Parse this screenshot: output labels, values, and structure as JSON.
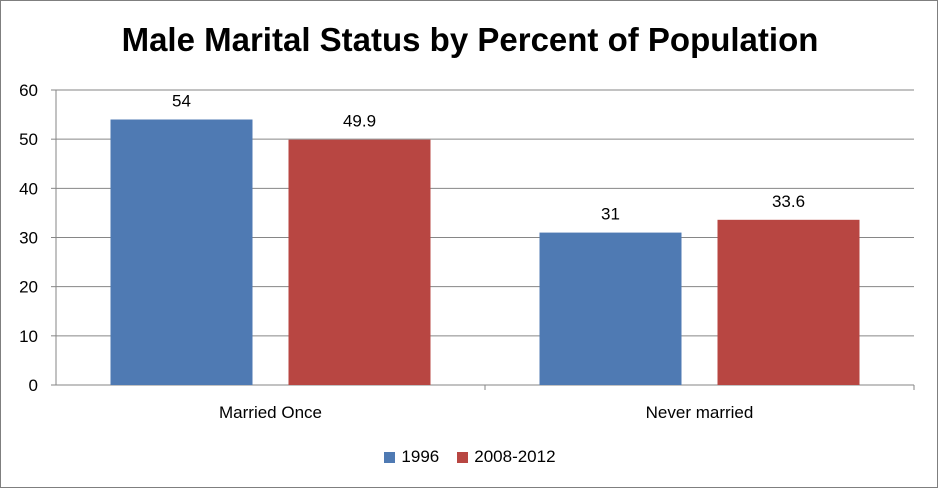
{
  "chart_data": {
    "type": "bar",
    "title": "Male Marital Status by Percent of Population",
    "categories": [
      "Married Once",
      "Never married"
    ],
    "series": [
      {
        "name": "1996",
        "values": [
          54,
          31
        ],
        "labels": [
          "54",
          "31"
        ],
        "color": "#4f7ab3"
      },
      {
        "name": "2008-2012",
        "values": [
          49.9,
          33.6
        ],
        "labels": [
          "49.9",
          "33.6"
        ],
        "color": "#b84642"
      }
    ],
    "y_ticks": [
      "0",
      "10",
      "20",
      "30",
      "40",
      "50",
      "60"
    ],
    "ylim": [
      0,
      60
    ],
    "grid": true,
    "legend_position": "bottom",
    "xlabel": "",
    "ylabel": ""
  }
}
